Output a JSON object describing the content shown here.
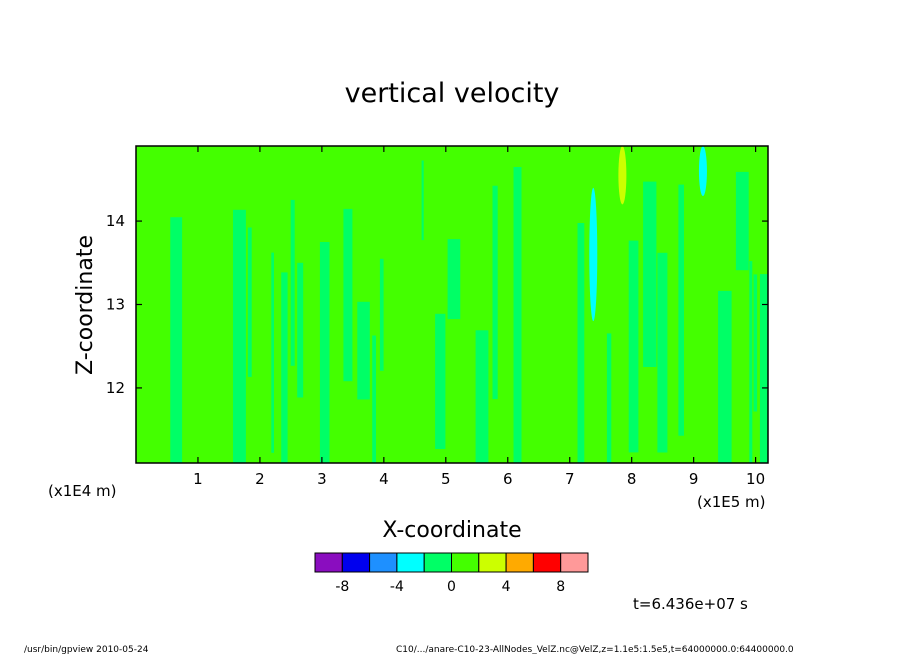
{
  "chart_data": {
    "type": "heatmap",
    "title": "vertical velocity",
    "xlabel": "X-coordinate",
    "ylabel": "Z-coordinate",
    "x_unit": "(x1E5 m)",
    "y_unit": "(x1E4 m)",
    "x_ticks": [
      1,
      2,
      3,
      4,
      5,
      6,
      7,
      8,
      9,
      10
    ],
    "y_ticks": [
      12,
      13,
      14
    ],
    "xlim": [
      0,
      10.2
    ],
    "ylim": [
      11.1,
      14.9
    ],
    "colorbar": {
      "colors": [
        "#8a0dbf",
        "#0000ee",
        "#1e90ff",
        "#00ffff",
        "#00ff66",
        "#44ff00",
        "#ccff00",
        "#ffaa00",
        "#ff0000",
        "#ff9999"
      ],
      "tick_labels": [
        "-8",
        "-4",
        "0",
        "4",
        "8"
      ],
      "tick_values": [
        -8,
        -4,
        0,
        4,
        8
      ],
      "range": [
        -10,
        10
      ]
    },
    "background_level": [
      -2,
      2
    ],
    "features": [
      {
        "x": 7.38,
        "z": [
          12.8,
          14.4
        ],
        "level": [
          -4,
          -2
        ]
      },
      {
        "x": 7.85,
        "z": [
          14.2,
          14.9
        ],
        "level": [
          2,
          4
        ]
      },
      {
        "x": 9.15,
        "z": [
          14.3,
          14.9
        ],
        "level": [
          -4,
          -2
        ]
      }
    ],
    "time_label": "t=6.436e+07 s"
  },
  "footer": {
    "left": "/usr/bin/gpview   2010-05-24",
    "right": "C10/.../anare-C10-23-AllNodes_VelZ.nc@VelZ,z=1.1e5:1.5e5,t=64000000.0:64400000.0"
  }
}
